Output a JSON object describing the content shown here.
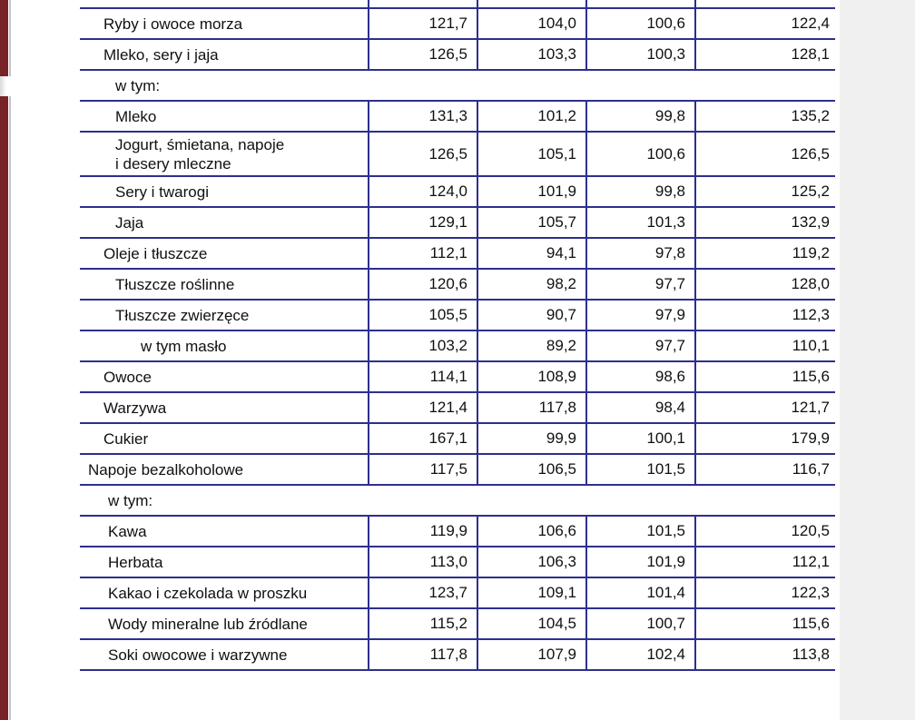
{
  "colors": {
    "page_background": "#ffffff",
    "outside_area": "#f0f0f1",
    "table_border": "#2d2f8e",
    "text": "#101010",
    "left_edge_bar": "#782327",
    "left_edge_gap": "#d9d9dc",
    "left_edge_line": "#c4c4c7"
  },
  "table": {
    "columns_count": 4,
    "rows": [
      {
        "kind": "partial",
        "label": "",
        "values": [
          "",
          "",
          "",
          ""
        ]
      },
      {
        "kind": "data",
        "indent": 1,
        "label": "Ryby i owoce morza",
        "values": [
          "121,7",
          "104,0",
          "100,6",
          "122,4"
        ]
      },
      {
        "kind": "data",
        "indent": 1,
        "label": "Mleko, sery i jaja",
        "values": [
          "126,5",
          "103,3",
          "100,3",
          "128,1"
        ]
      },
      {
        "kind": "group",
        "indent": 3,
        "label": "w tym:"
      },
      {
        "kind": "data",
        "indent": 3,
        "label": "Mleko",
        "values": [
          "131,3",
          "101,2",
          "99,8",
          "135,2"
        ]
      },
      {
        "kind": "data",
        "indent": 3,
        "tall": true,
        "label": "Jogurt, śmietana, napoje\ni desery mleczne",
        "values": [
          "126,5",
          "105,1",
          "100,6",
          "126,5"
        ]
      },
      {
        "kind": "data",
        "indent": 3,
        "label": "Sery i twarogi",
        "values": [
          "124,0",
          "101,9",
          "99,8",
          "125,2"
        ]
      },
      {
        "kind": "data",
        "indent": 3,
        "label": "Jaja",
        "values": [
          "129,1",
          "105,7",
          "101,3",
          "132,9"
        ]
      },
      {
        "kind": "data",
        "indent": 1,
        "label": "Oleje i tłuszcze",
        "values": [
          "112,1",
          "94,1",
          "97,8",
          "119,2"
        ]
      },
      {
        "kind": "data",
        "indent": 3,
        "label": "Tłuszcze roślinne",
        "values": [
          "120,6",
          "98,2",
          "97,7",
          "128,0"
        ]
      },
      {
        "kind": "data",
        "indent": 3,
        "label": "Tłuszcze zwierzęce",
        "values": [
          "105,5",
          "90,7",
          "97,9",
          "112,3"
        ]
      },
      {
        "kind": "data",
        "indent": 4,
        "label": "w tym masło",
        "values": [
          "103,2",
          "89,2",
          "97,7",
          "110,1"
        ]
      },
      {
        "kind": "data",
        "indent": 1,
        "label": "Owoce",
        "values": [
          "114,1",
          "108,9",
          "98,6",
          "115,6"
        ]
      },
      {
        "kind": "data",
        "indent": 1,
        "label": "Warzywa",
        "values": [
          "121,4",
          "117,8",
          "98,4",
          "121,7"
        ]
      },
      {
        "kind": "data",
        "indent": 1,
        "label": "Cukier",
        "values": [
          "167,1",
          "99,9",
          "100,1",
          "179,9"
        ]
      },
      {
        "kind": "data",
        "indent": 0,
        "label": "Napoje bezalkoholowe",
        "values": [
          "117,5",
          "106,5",
          "101,5",
          "116,7"
        ]
      },
      {
        "kind": "group",
        "indent": 2,
        "label": "w tym:"
      },
      {
        "kind": "data",
        "indent": 2,
        "label": "Kawa",
        "values": [
          "119,9",
          "106,6",
          "101,5",
          "120,5"
        ]
      },
      {
        "kind": "data",
        "indent": 2,
        "label": "Herbata",
        "values": [
          "113,0",
          "106,3",
          "101,9",
          "112,1"
        ]
      },
      {
        "kind": "data",
        "indent": 2,
        "label": "Kakao i czekolada w proszku",
        "values": [
          "123,7",
          "109,1",
          "101,4",
          "122,3"
        ]
      },
      {
        "kind": "data",
        "indent": 2,
        "label": "Wody mineralne lub źródlane",
        "values": [
          "115,2",
          "104,5",
          "100,7",
          "115,6"
        ]
      },
      {
        "kind": "data",
        "indent": 2,
        "label": "Soki owocowe i warzywne",
        "values": [
          "117,8",
          "107,9",
          "102,4",
          "113,8"
        ]
      }
    ]
  }
}
